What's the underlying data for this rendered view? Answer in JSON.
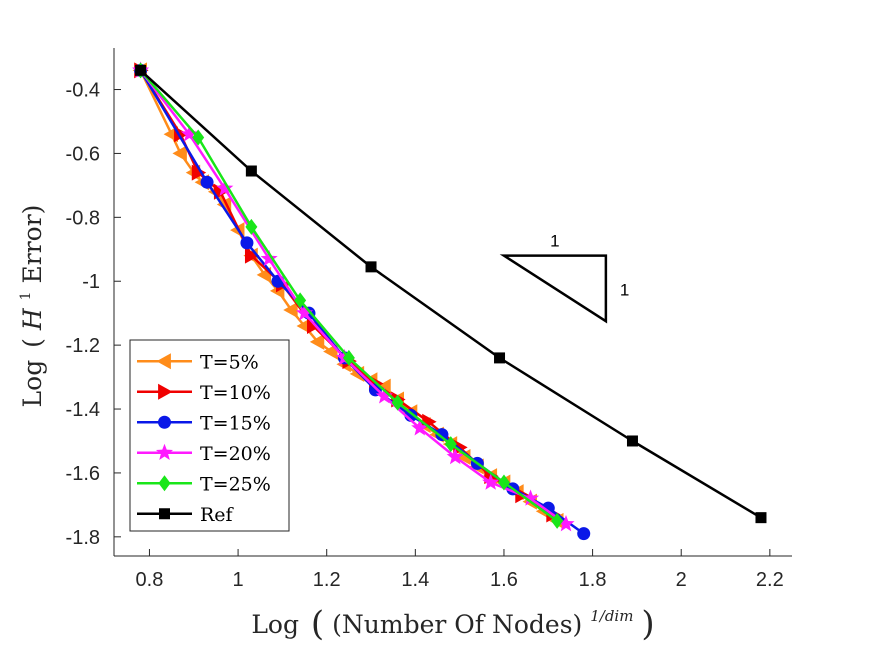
{
  "chart_data": {
    "type": "line",
    "title": "",
    "xlabel_parts": {
      "prefix": "Log",
      "inner": "(Number Of Nodes)",
      "sup": "1/dim"
    },
    "ylabel_parts": {
      "prefix": "Log",
      "inner_before": "(",
      "script": "H",
      "sup": "1",
      "inner_after": " Error)"
    },
    "xlim": [
      0.72,
      2.25
    ],
    "ylim": [
      -1.86,
      -0.27
    ],
    "xticks": [
      0.8,
      1,
      1.2,
      1.4,
      1.6,
      1.8,
      2,
      2.2
    ],
    "xtick_labels": [
      "0.8",
      "1",
      "1.2",
      "1.4",
      "1.6",
      "1.8",
      "2",
      "2.2"
    ],
    "yticks": [
      -0.4,
      -0.6,
      -0.8,
      -1,
      -1.2,
      -1.4,
      -1.6,
      -1.8
    ],
    "ytick_labels": [
      "-0.4",
      "-0.6",
      "-0.8",
      "-1",
      "-1.2",
      "-1.4",
      "-1.6",
      "-1.8"
    ],
    "grid": false,
    "legend_position": "bottom-left",
    "series": [
      {
        "name": "T=5%",
        "color": "#FF8C1A",
        "marker": "triangle-left",
        "x": [
          0.78,
          0.85,
          0.87,
          0.9,
          0.92,
          0.95,
          0.97,
          1.0,
          1.03,
          1.06,
          1.09,
          1.12,
          1.15,
          1.18,
          1.21,
          1.24,
          1.27,
          1.3,
          1.33,
          1.36,
          1.39,
          1.42,
          1.45,
          1.48,
          1.51,
          1.54,
          1.57,
          1.6,
          1.63,
          1.66,
          1.69,
          1.72
        ],
        "y": [
          -0.34,
          -0.54,
          -0.6,
          -0.66,
          -0.69,
          -0.72,
          -0.76,
          -0.84,
          -0.92,
          -0.98,
          -1.03,
          -1.09,
          -1.14,
          -1.19,
          -1.22,
          -1.26,
          -1.29,
          -1.31,
          -1.33,
          -1.37,
          -1.41,
          -1.45,
          -1.48,
          -1.51,
          -1.55,
          -1.58,
          -1.61,
          -1.63,
          -1.66,
          -1.69,
          -1.72,
          -1.75
        ]
      },
      {
        "name": "T=10%",
        "color": "#F00000",
        "marker": "triangle-right",
        "x": [
          0.78,
          0.87,
          0.91,
          0.96,
          1.03,
          1.1,
          1.17,
          1.25,
          1.31,
          1.36,
          1.43,
          1.5,
          1.57,
          1.64,
          1.71
        ],
        "y": [
          -0.34,
          -0.54,
          -0.66,
          -0.72,
          -0.92,
          -1.01,
          -1.14,
          -1.25,
          -1.32,
          -1.37,
          -1.44,
          -1.52,
          -1.61,
          -1.67,
          -1.73
        ]
      },
      {
        "name": "T=15%",
        "color": "#0A18E8",
        "marker": "circle",
        "x": [
          0.78,
          0.93,
          1.02,
          1.09,
          1.16,
          1.24,
          1.31,
          1.39,
          1.46,
          1.54,
          1.62,
          1.7,
          1.78
        ],
        "y": [
          -0.34,
          -0.69,
          -0.88,
          -1.0,
          -1.1,
          -1.24,
          -1.34,
          -1.42,
          -1.48,
          -1.57,
          -1.65,
          -1.71,
          -1.79
        ]
      },
      {
        "name": "T=20%",
        "color": "#FF1AFF",
        "marker": "star",
        "x": [
          0.78,
          0.89,
          0.97,
          1.07,
          1.15,
          1.24,
          1.33,
          1.41,
          1.49,
          1.57,
          1.66,
          1.74
        ],
        "y": [
          -0.34,
          -0.54,
          -0.71,
          -0.93,
          -1.1,
          -1.24,
          -1.36,
          -1.46,
          -1.55,
          -1.63,
          -1.68,
          -1.76
        ]
      },
      {
        "name": "T=25%",
        "color": "#19E619",
        "marker": "diamond",
        "x": [
          0.78,
          0.91,
          1.03,
          1.14,
          1.25,
          1.36,
          1.48,
          1.6,
          1.72
        ],
        "y": [
          -0.34,
          -0.55,
          -0.83,
          -1.06,
          -1.24,
          -1.38,
          -1.51,
          -1.63,
          -1.75
        ]
      },
      {
        "name": "Ref",
        "color": "#000000",
        "marker": "square",
        "x": [
          0.78,
          1.03,
          1.3,
          1.59,
          1.89,
          2.18
        ],
        "y": [
          -0.34,
          -0.655,
          -0.955,
          -1.24,
          -1.5,
          -1.74
        ]
      }
    ],
    "annotation": {
      "type": "slope-triangle",
      "x0": 1.6,
      "y0": -0.92,
      "x1": 1.83,
      "y1": -1.125,
      "horizontal_label": "1",
      "vertical_label": "1"
    }
  }
}
